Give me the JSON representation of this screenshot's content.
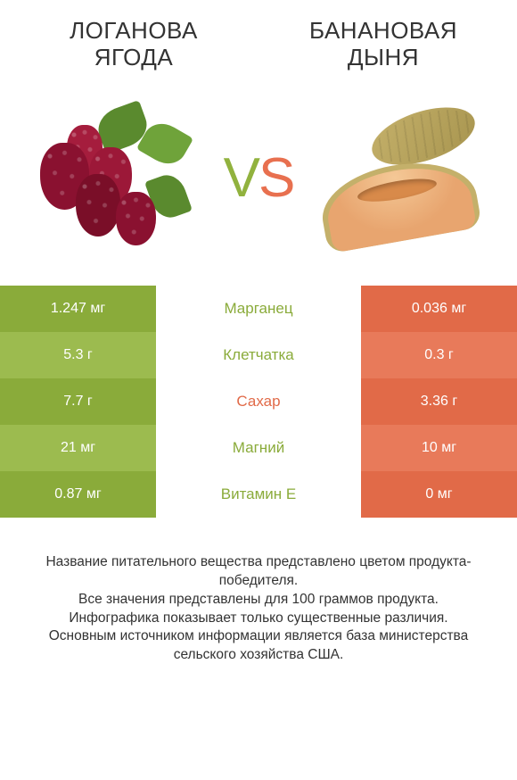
{
  "colors": {
    "left_dark": "#8aab3a",
    "left_light": "#9cbb4f",
    "right_dark": "#e16a48",
    "right_light": "#e87a5a",
    "mid_left": "#8aab3a",
    "mid_right": "#e16a48"
  },
  "left_title": "ЛОГАНОВА ЯГОДА",
  "right_title": "БАНАНОВАЯ ДЫНЯ",
  "vs_v": "V",
  "vs_s": "S",
  "rows": [
    {
      "left": "1.247 мг",
      "mid": "Марганец",
      "right": "0.036 мг",
      "winner": "left"
    },
    {
      "left": "5.3 г",
      "mid": "Клетчатка",
      "right": "0.3 г",
      "winner": "left"
    },
    {
      "left": "7.7 г",
      "mid": "Сахар",
      "right": "3.36 г",
      "winner": "right"
    },
    {
      "left": "21 мг",
      "mid": "Магний",
      "right": "10 мг",
      "winner": "left"
    },
    {
      "left": "0.87 мг",
      "mid": "Витамин E",
      "right": "0 мг",
      "winner": "left"
    }
  ],
  "footer_lines": [
    "Название питательного вещества представлено цветом продукта-победителя.",
    "Все значения представлены для 100 граммов продукта.",
    "Инфографика показывает только существенные различия.",
    "Основным источником информации является база министерства сельского хозяйства США."
  ]
}
